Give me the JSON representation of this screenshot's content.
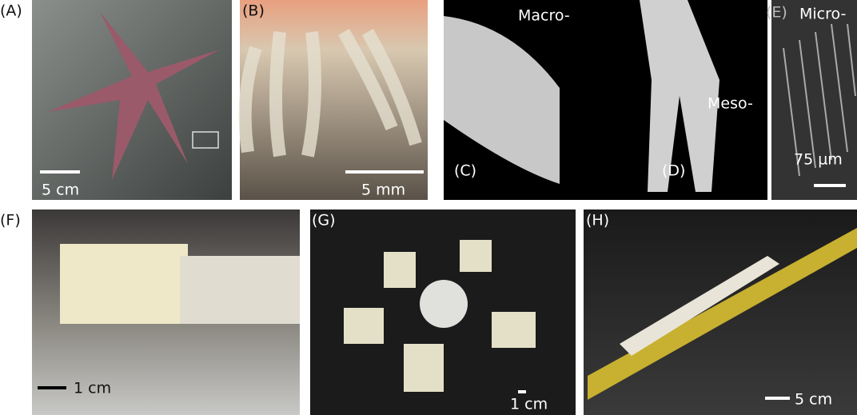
{
  "panels": [
    {
      "label": "(A)",
      "scale": "5 cm"
    },
    {
      "label": "(B)",
      "scale": "5 mm"
    },
    {
      "label": "(C)",
      "region": "Macro-"
    },
    {
      "label": "(D)",
      "region": "Meso-"
    },
    {
      "label": "(E)",
      "region": "Micro-",
      "scale": "75 µm"
    },
    {
      "label": "(F)",
      "scale": "1 cm"
    },
    {
      "label": "(G)",
      "scale": "1 cm"
    },
    {
      "label": "(H)",
      "scale": "5 cm"
    }
  ]
}
